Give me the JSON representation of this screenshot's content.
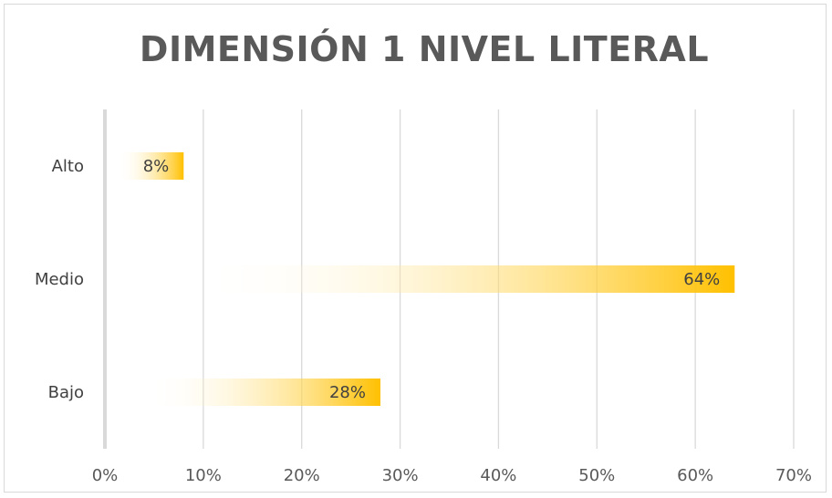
{
  "chart_data": {
    "type": "bar",
    "orientation": "horizontal",
    "title": "DIMENSIÓN 1 NIVEL LITERAL",
    "categories": [
      "Alto",
      "Medio",
      "Bajo"
    ],
    "values": [
      8,
      64,
      28
    ],
    "data_labels": [
      "8%",
      "64%",
      "28%"
    ],
    "xlim": [
      0,
      70
    ],
    "x_ticks": [
      "0%",
      "10%",
      "20%",
      "30%",
      "40%",
      "50%",
      "60%",
      "70%"
    ],
    "xlabel": "",
    "ylabel": "",
    "grid": "vertical",
    "legend": "none",
    "colors": {
      "bar": "#ffc000",
      "bar_fade": "#ffffff",
      "grid": "#d9d9d9",
      "axis": "#d9d9d9"
    }
  }
}
